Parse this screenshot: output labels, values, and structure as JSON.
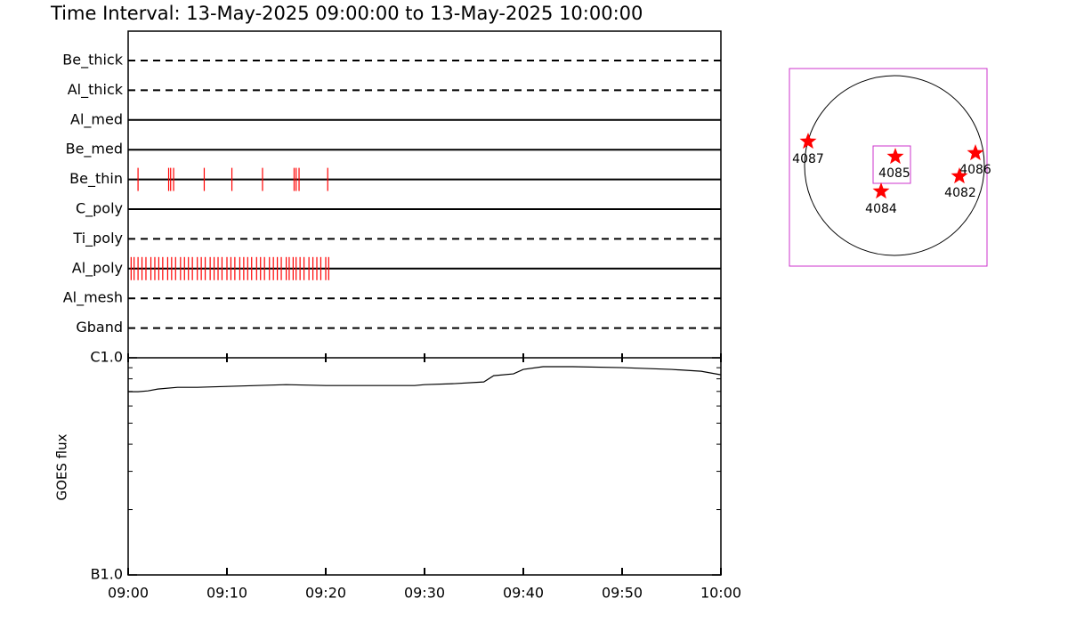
{
  "title": "Time Interval: 13-May-2025 09:00:00 to 13-May-2025 10:00:00",
  "timeline": {
    "xlim": [
      0,
      60
    ],
    "filters": [
      {
        "name": "Be_thick",
        "style": "dashed",
        "events": []
      },
      {
        "name": "Al_thick",
        "style": "dashed",
        "events": []
      },
      {
        "name": "Al_med",
        "style": "solid",
        "events": []
      },
      {
        "name": "Be_med",
        "style": "solid",
        "events": []
      },
      {
        "name": "Be_thin",
        "style": "solid",
        "events": [
          1.0,
          4.1,
          4.3,
          4.6,
          7.7,
          10.5,
          13.6,
          16.8,
          17.0,
          17.3,
          20.2
        ]
      },
      {
        "name": "C_poly",
        "style": "solid",
        "events": []
      },
      {
        "name": "Ti_poly",
        "style": "dashed",
        "events": []
      },
      {
        "name": "Al_poly",
        "style": "solid",
        "events": [
          0.3,
          0.6,
          1.0,
          1.4,
          1.8,
          2.3,
          2.7,
          3.1,
          3.5,
          4.0,
          4.4,
          4.8,
          5.3,
          5.7,
          6.1,
          6.5,
          7.0,
          7.4,
          7.8,
          8.3,
          8.7,
          9.1,
          9.5,
          10.0,
          10.4,
          10.8,
          11.3,
          11.7,
          12.1,
          12.5,
          13.0,
          13.4,
          13.8,
          14.3,
          14.7,
          15.1,
          15.5,
          16.0,
          16.3,
          16.7,
          17.0,
          17.4,
          17.8,
          18.3,
          18.7,
          19.1,
          19.5,
          20.0,
          20.3
        ]
      },
      {
        "name": "Al_mesh",
        "style": "dashed",
        "events": []
      },
      {
        "name": "Gband",
        "style": "dashed",
        "events": []
      }
    ],
    "event_color": "#ff0000"
  },
  "chart_data": {
    "type": "line",
    "ylabel": "GOES flux",
    "log_scale": true,
    "x": [
      0,
      1,
      2,
      3,
      5,
      7,
      10,
      13,
      16,
      20,
      25,
      29,
      30,
      33,
      36,
      37,
      39,
      40,
      42,
      45,
      50,
      55,
      58,
      60
    ],
    "values": [
      6.98e-07,
      6.98e-07,
      7.04e-07,
      7.18e-07,
      7.31e-07,
      7.31e-07,
      7.38e-07,
      7.45e-07,
      7.52e-07,
      7.45e-07,
      7.45e-07,
      7.45e-07,
      7.52e-07,
      7.6e-07,
      7.74e-07,
      8.27e-07,
      8.43e-07,
      8.84e-07,
      9.1e-07,
      9.1e-07,
      9.01e-07,
      8.84e-07,
      8.67e-07,
      8.35e-07
    ],
    "color": "#000000",
    "xlim": [
      0,
      60
    ],
    "xticks": [
      {
        "value": 0,
        "label": "09:00"
      },
      {
        "value": 10,
        "label": "09:10"
      },
      {
        "value": 20,
        "label": "09:20"
      },
      {
        "value": 30,
        "label": "09:30"
      },
      {
        "value": 40,
        "label": "09:40"
      },
      {
        "value": 50,
        "label": "09:50"
      },
      {
        "value": 60,
        "label": "10:00"
      }
    ],
    "ylim": [
      1e-07,
      1e-06
    ],
    "yticks": [
      {
        "value": 1e-07,
        "label": "B1.0"
      },
      {
        "value": 1e-06,
        "label": "C1.0"
      }
    ],
    "yminorticks": [
      2e-07,
      3e-07,
      4e-07,
      5e-07,
      6e-07,
      7e-07,
      8e-07,
      9e-07
    ]
  },
  "map": {
    "regions": [
      "4087",
      "4085",
      "4086",
      "4082",
      "4084"
    ]
  }
}
